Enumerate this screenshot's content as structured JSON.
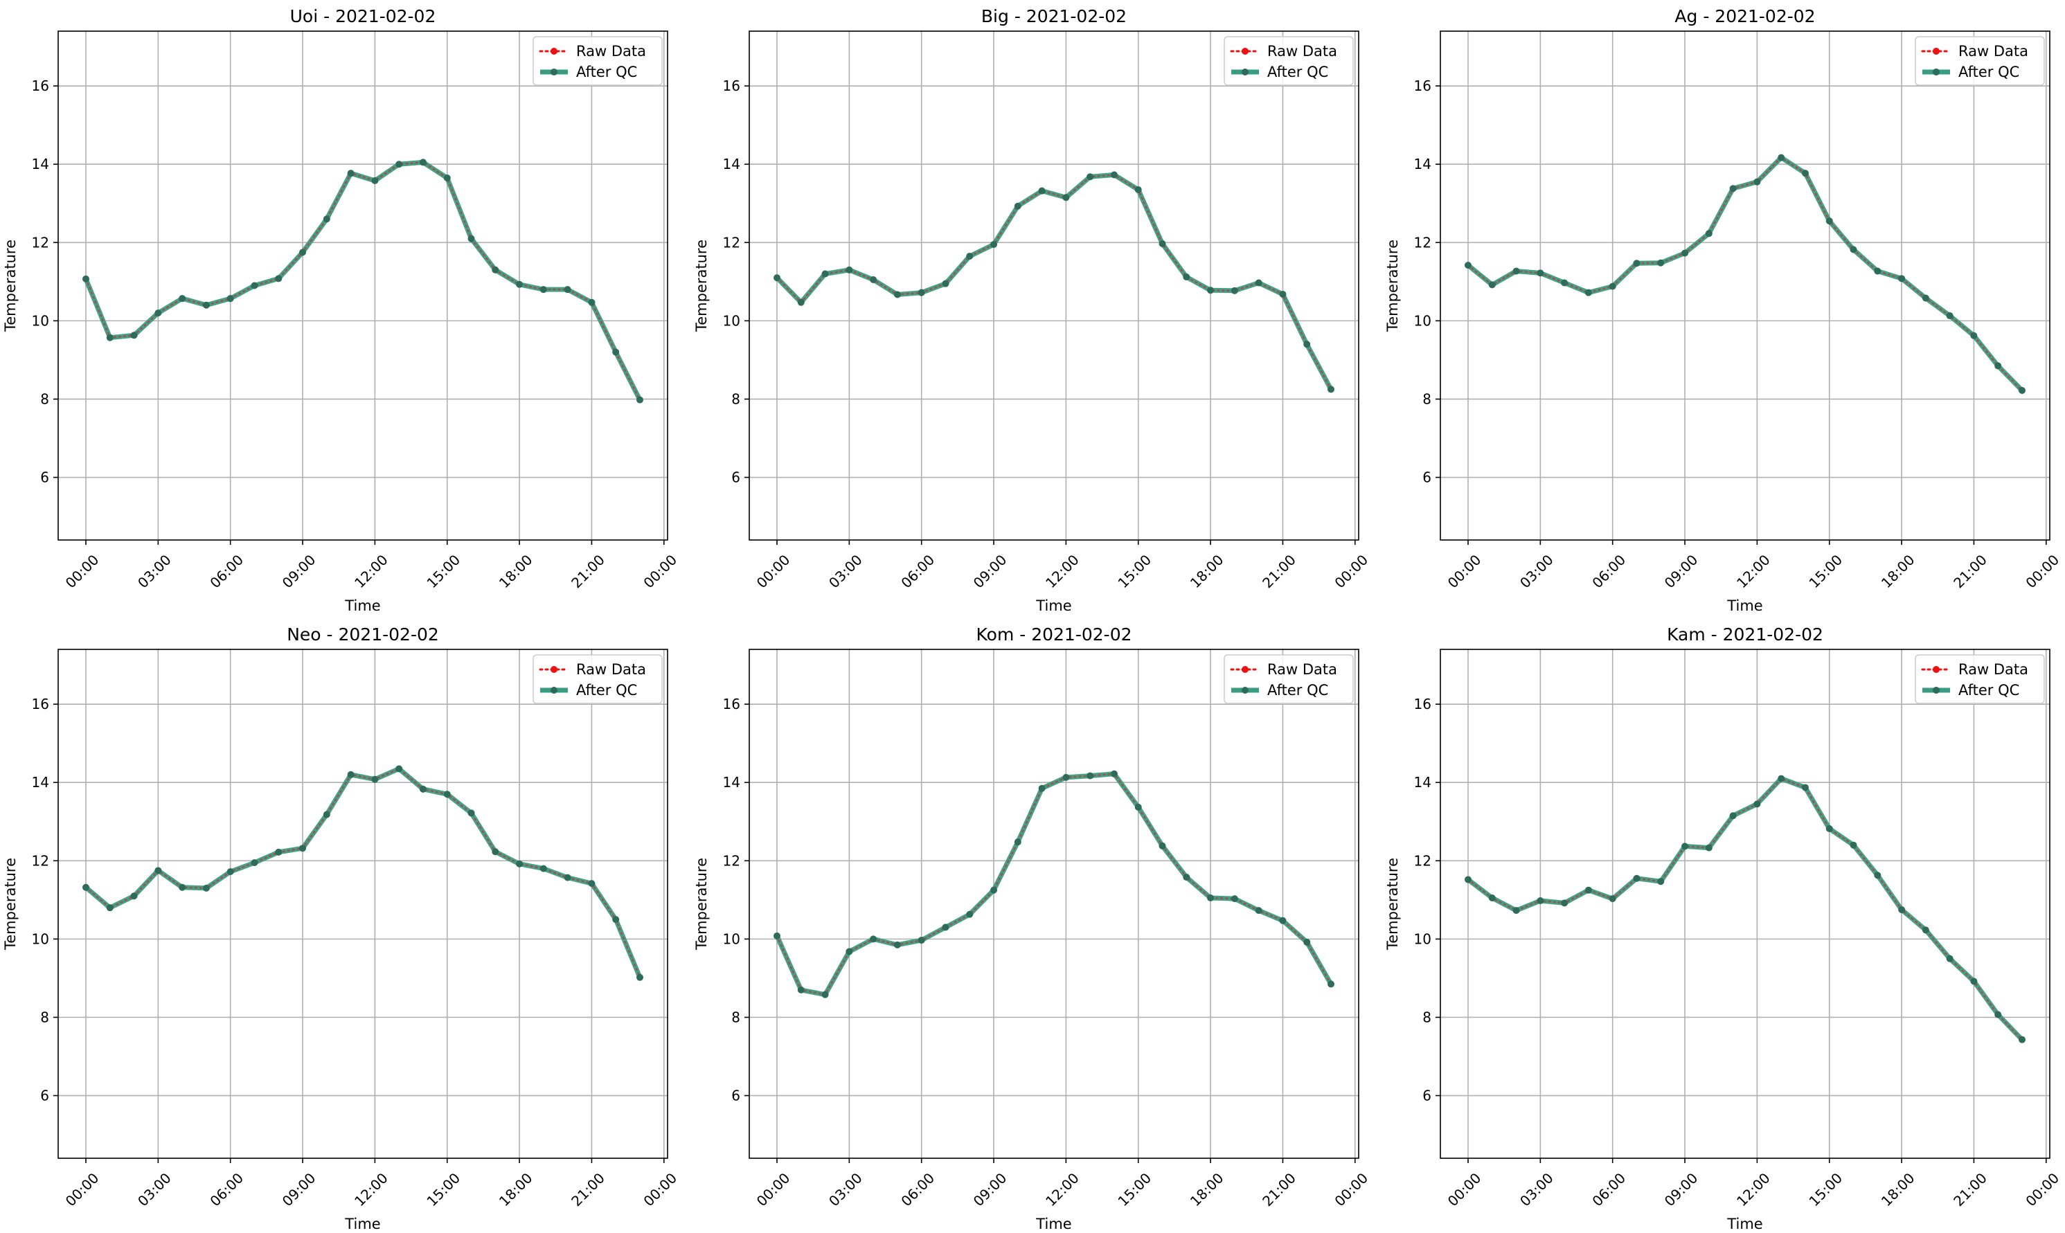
{
  "figure": {
    "legend_labels": [
      "Raw Data",
      "After QC"
    ],
    "legend_location": "upper right",
    "colors": {
      "raw": "#ee1111",
      "after_qc": "#3a9c82",
      "after_qc_markers": "#2f6b5a",
      "grid": "#b0b0b0",
      "axes": "#000000"
    }
  },
  "chart_data": [
    {
      "type": "line",
      "title": "Uoi - 2021-02-02",
      "xlabel": "Time",
      "ylabel": "Temperature",
      "ylim": [
        4.4,
        17.4
      ],
      "xlim": [
        -1.15,
        24.15
      ],
      "yticks": [
        6,
        8,
        10,
        12,
        14,
        16
      ],
      "xtick_hours": [
        0,
        3,
        6,
        9,
        12,
        15,
        18,
        21,
        24
      ],
      "xtick_labels": [
        "00:00",
        "03:00",
        "06:00",
        "09:00",
        "12:00",
        "15:00",
        "18:00",
        "21:00",
        "00:00"
      ],
      "grid": true,
      "legend": "upper right",
      "x_hours": [
        0,
        1,
        2,
        3,
        4,
        5,
        6,
        7,
        8,
        9,
        10,
        11,
        12,
        13,
        14,
        15,
        16,
        17,
        18,
        19,
        20,
        21,
        22,
        23
      ],
      "series": [
        {
          "name": "Raw Data",
          "style": "dotted",
          "marker": "circle",
          "values": [
            11.07,
            9.57,
            9.63,
            10.2,
            10.57,
            10.4,
            10.57,
            10.9,
            11.08,
            11.75,
            12.6,
            13.77,
            13.58,
            14.0,
            14.05,
            13.65,
            12.1,
            11.3,
            10.93,
            10.8,
            10.8,
            10.47,
            9.2,
            7.98
          ]
        },
        {
          "name": "After QC",
          "style": "solid",
          "marker": "circle",
          "values": [
            11.07,
            9.57,
            9.63,
            10.2,
            10.57,
            10.4,
            10.57,
            10.9,
            11.08,
            11.75,
            12.6,
            13.77,
            13.58,
            14.0,
            14.05,
            13.65,
            12.1,
            11.3,
            10.93,
            10.8,
            10.8,
            10.47,
            9.2,
            7.98
          ]
        }
      ]
    },
    {
      "type": "line",
      "title": "Big - 2021-02-02",
      "xlabel": "Time",
      "ylabel": "Temperature",
      "ylim": [
        4.4,
        17.4
      ],
      "xlim": [
        -1.15,
        24.15
      ],
      "yticks": [
        6,
        8,
        10,
        12,
        14,
        16
      ],
      "xtick_hours": [
        0,
        3,
        6,
        9,
        12,
        15,
        18,
        21,
        24
      ],
      "xtick_labels": [
        "00:00",
        "03:00",
        "06:00",
        "09:00",
        "12:00",
        "15:00",
        "18:00",
        "21:00",
        "00:00"
      ],
      "grid": true,
      "legend": "upper right",
      "x_hours": [
        0,
        1,
        2,
        3,
        4,
        5,
        6,
        7,
        8,
        9,
        10,
        11,
        12,
        13,
        14,
        15,
        16,
        17,
        18,
        19,
        20,
        21,
        22,
        23
      ],
      "series": [
        {
          "name": "Raw Data",
          "style": "dotted",
          "marker": "circle",
          "values": [
            11.1,
            10.47,
            11.2,
            11.3,
            11.05,
            10.67,
            10.72,
            10.95,
            11.65,
            11.95,
            12.93,
            13.32,
            13.15,
            13.68,
            13.73,
            13.35,
            11.97,
            11.12,
            10.78,
            10.77,
            10.97,
            10.68,
            9.4,
            8.25
          ]
        },
        {
          "name": "After QC",
          "style": "solid",
          "marker": "circle",
          "values": [
            11.1,
            10.47,
            11.2,
            11.3,
            11.05,
            10.67,
            10.72,
            10.95,
            11.65,
            11.95,
            12.93,
            13.32,
            13.15,
            13.68,
            13.73,
            13.35,
            11.97,
            11.12,
            10.78,
            10.77,
            10.97,
            10.68,
            9.4,
            8.25
          ]
        }
      ]
    },
    {
      "type": "line",
      "title": "Ag - 2021-02-02",
      "xlabel": "Time",
      "ylabel": "Temperature",
      "ylim": [
        4.4,
        17.4
      ],
      "xlim": [
        -1.15,
        24.15
      ],
      "yticks": [
        6,
        8,
        10,
        12,
        14,
        16
      ],
      "xtick_hours": [
        0,
        3,
        6,
        9,
        12,
        15,
        18,
        21,
        24
      ],
      "xtick_labels": [
        "00:00",
        "03:00",
        "06:00",
        "09:00",
        "12:00",
        "15:00",
        "18:00",
        "21:00",
        "00:00"
      ],
      "grid": true,
      "legend": "upper right",
      "x_hours": [
        0,
        1,
        2,
        3,
        4,
        5,
        6,
        7,
        8,
        9,
        10,
        11,
        12,
        13,
        14,
        15,
        16,
        17,
        18,
        19,
        20,
        21,
        22,
        23
      ],
      "series": [
        {
          "name": "Raw Data",
          "style": "dotted",
          "marker": "circle",
          "values": [
            11.42,
            10.92,
            11.27,
            11.22,
            10.97,
            10.72,
            10.88,
            11.47,
            11.48,
            11.73,
            12.23,
            13.38,
            13.55,
            14.17,
            13.77,
            12.55,
            11.82,
            11.27,
            11.08,
            10.58,
            10.13,
            9.62,
            8.85,
            8.22
          ]
        },
        {
          "name": "After QC",
          "style": "solid",
          "marker": "circle",
          "values": [
            11.42,
            10.92,
            11.27,
            11.22,
            10.97,
            10.72,
            10.88,
            11.47,
            11.48,
            11.73,
            12.23,
            13.38,
            13.55,
            14.17,
            13.77,
            12.55,
            11.82,
            11.27,
            11.08,
            10.58,
            10.13,
            9.62,
            8.85,
            8.22
          ]
        }
      ]
    },
    {
      "type": "line",
      "title": "Neo - 2021-02-02",
      "xlabel": "Time",
      "ylabel": "Temperature",
      "ylim": [
        4.4,
        17.4
      ],
      "xlim": [
        -1.15,
        24.15
      ],
      "yticks": [
        6,
        8,
        10,
        12,
        14,
        16
      ],
      "xtick_hours": [
        0,
        3,
        6,
        9,
        12,
        15,
        18,
        21,
        24
      ],
      "xtick_labels": [
        "00:00",
        "03:00",
        "06:00",
        "09:00",
        "12:00",
        "15:00",
        "18:00",
        "21:00",
        "00:00"
      ],
      "grid": true,
      "legend": "upper right",
      "x_hours": [
        0,
        1,
        2,
        3,
        4,
        5,
        6,
        7,
        8,
        9,
        10,
        11,
        12,
        13,
        14,
        15,
        16,
        17,
        18,
        19,
        20,
        21,
        22,
        23
      ],
      "series": [
        {
          "name": "Raw Data",
          "style": "dotted",
          "marker": "circle",
          "values": [
            11.32,
            10.8,
            11.1,
            11.75,
            11.32,
            11.3,
            11.72,
            11.95,
            12.22,
            12.32,
            13.18,
            14.2,
            14.08,
            14.35,
            13.83,
            13.7,
            13.22,
            12.23,
            11.92,
            11.8,
            11.57,
            11.42,
            10.5,
            9.02
          ]
        },
        {
          "name": "After QC",
          "style": "solid",
          "marker": "circle",
          "values": [
            11.32,
            10.8,
            11.1,
            11.75,
            11.32,
            11.3,
            11.72,
            11.95,
            12.22,
            12.32,
            13.18,
            14.2,
            14.08,
            14.35,
            13.83,
            13.7,
            13.22,
            12.23,
            11.92,
            11.8,
            11.57,
            11.42,
            10.5,
            9.02
          ]
        }
      ]
    },
    {
      "type": "line",
      "title": "Kom - 2021-02-02",
      "xlabel": "Time",
      "ylabel": "Temperature",
      "ylim": [
        4.4,
        17.4
      ],
      "xlim": [
        -1.15,
        24.15
      ],
      "yticks": [
        6,
        8,
        10,
        12,
        14,
        16
      ],
      "xtick_hours": [
        0,
        3,
        6,
        9,
        12,
        15,
        18,
        21,
        24
      ],
      "xtick_labels": [
        "00:00",
        "03:00",
        "06:00",
        "09:00",
        "12:00",
        "15:00",
        "18:00",
        "21:00",
        "00:00"
      ],
      "grid": true,
      "legend": "upper right",
      "x_hours": [
        0,
        1,
        2,
        3,
        4,
        5,
        6,
        7,
        8,
        9,
        10,
        11,
        12,
        13,
        14,
        15,
        16,
        17,
        18,
        19,
        20,
        21,
        22,
        23
      ],
      "series": [
        {
          "name": "Raw Data",
          "style": "dotted",
          "marker": "circle",
          "values": [
            10.08,
            8.7,
            8.58,
            9.68,
            10.0,
            9.85,
            9.97,
            10.3,
            10.63,
            11.25,
            12.48,
            13.85,
            14.13,
            14.17,
            14.22,
            13.37,
            12.38,
            11.58,
            11.05,
            11.03,
            10.73,
            10.47,
            9.92,
            8.85
          ]
        },
        {
          "name": "After QC",
          "style": "solid",
          "marker": "circle",
          "values": [
            10.08,
            8.7,
            8.58,
            9.68,
            10.0,
            9.85,
            9.97,
            10.3,
            10.63,
            11.25,
            12.48,
            13.85,
            14.13,
            14.17,
            14.22,
            13.37,
            12.38,
            11.58,
            11.05,
            11.03,
            10.73,
            10.47,
            9.92,
            8.85
          ]
        }
      ]
    },
    {
      "type": "line",
      "title": "Kam - 2021-02-02",
      "xlabel": "Time",
      "ylabel": "Temperature",
      "ylim": [
        4.4,
        17.4
      ],
      "xlim": [
        -1.15,
        24.15
      ],
      "yticks": [
        6,
        8,
        10,
        12,
        14,
        16
      ],
      "xtick_hours": [
        0,
        3,
        6,
        9,
        12,
        15,
        18,
        21,
        24
      ],
      "xtick_labels": [
        "00:00",
        "03:00",
        "06:00",
        "09:00",
        "12:00",
        "15:00",
        "18:00",
        "21:00",
        "00:00"
      ],
      "grid": true,
      "legend": "upper right",
      "x_hours": [
        0,
        1,
        2,
        3,
        4,
        5,
        6,
        7,
        8,
        9,
        10,
        11,
        12,
        13,
        14,
        15,
        16,
        17,
        18,
        19,
        20,
        21,
        22,
        23
      ],
      "series": [
        {
          "name": "Raw Data",
          "style": "dotted",
          "marker": "circle",
          "values": [
            11.52,
            11.05,
            10.73,
            10.98,
            10.92,
            11.25,
            11.03,
            11.55,
            11.47,
            12.37,
            12.33,
            13.15,
            13.45,
            14.1,
            13.87,
            12.82,
            12.4,
            11.63,
            10.75,
            10.23,
            9.5,
            8.92,
            8.07,
            7.43
          ]
        },
        {
          "name": "After QC",
          "style": "solid",
          "marker": "circle",
          "values": [
            11.52,
            11.05,
            10.73,
            10.98,
            10.92,
            11.25,
            11.03,
            11.55,
            11.47,
            12.37,
            12.33,
            13.15,
            13.45,
            14.1,
            13.87,
            12.82,
            12.4,
            11.63,
            10.75,
            10.23,
            9.5,
            8.92,
            8.07,
            7.43
          ]
        }
      ]
    }
  ]
}
